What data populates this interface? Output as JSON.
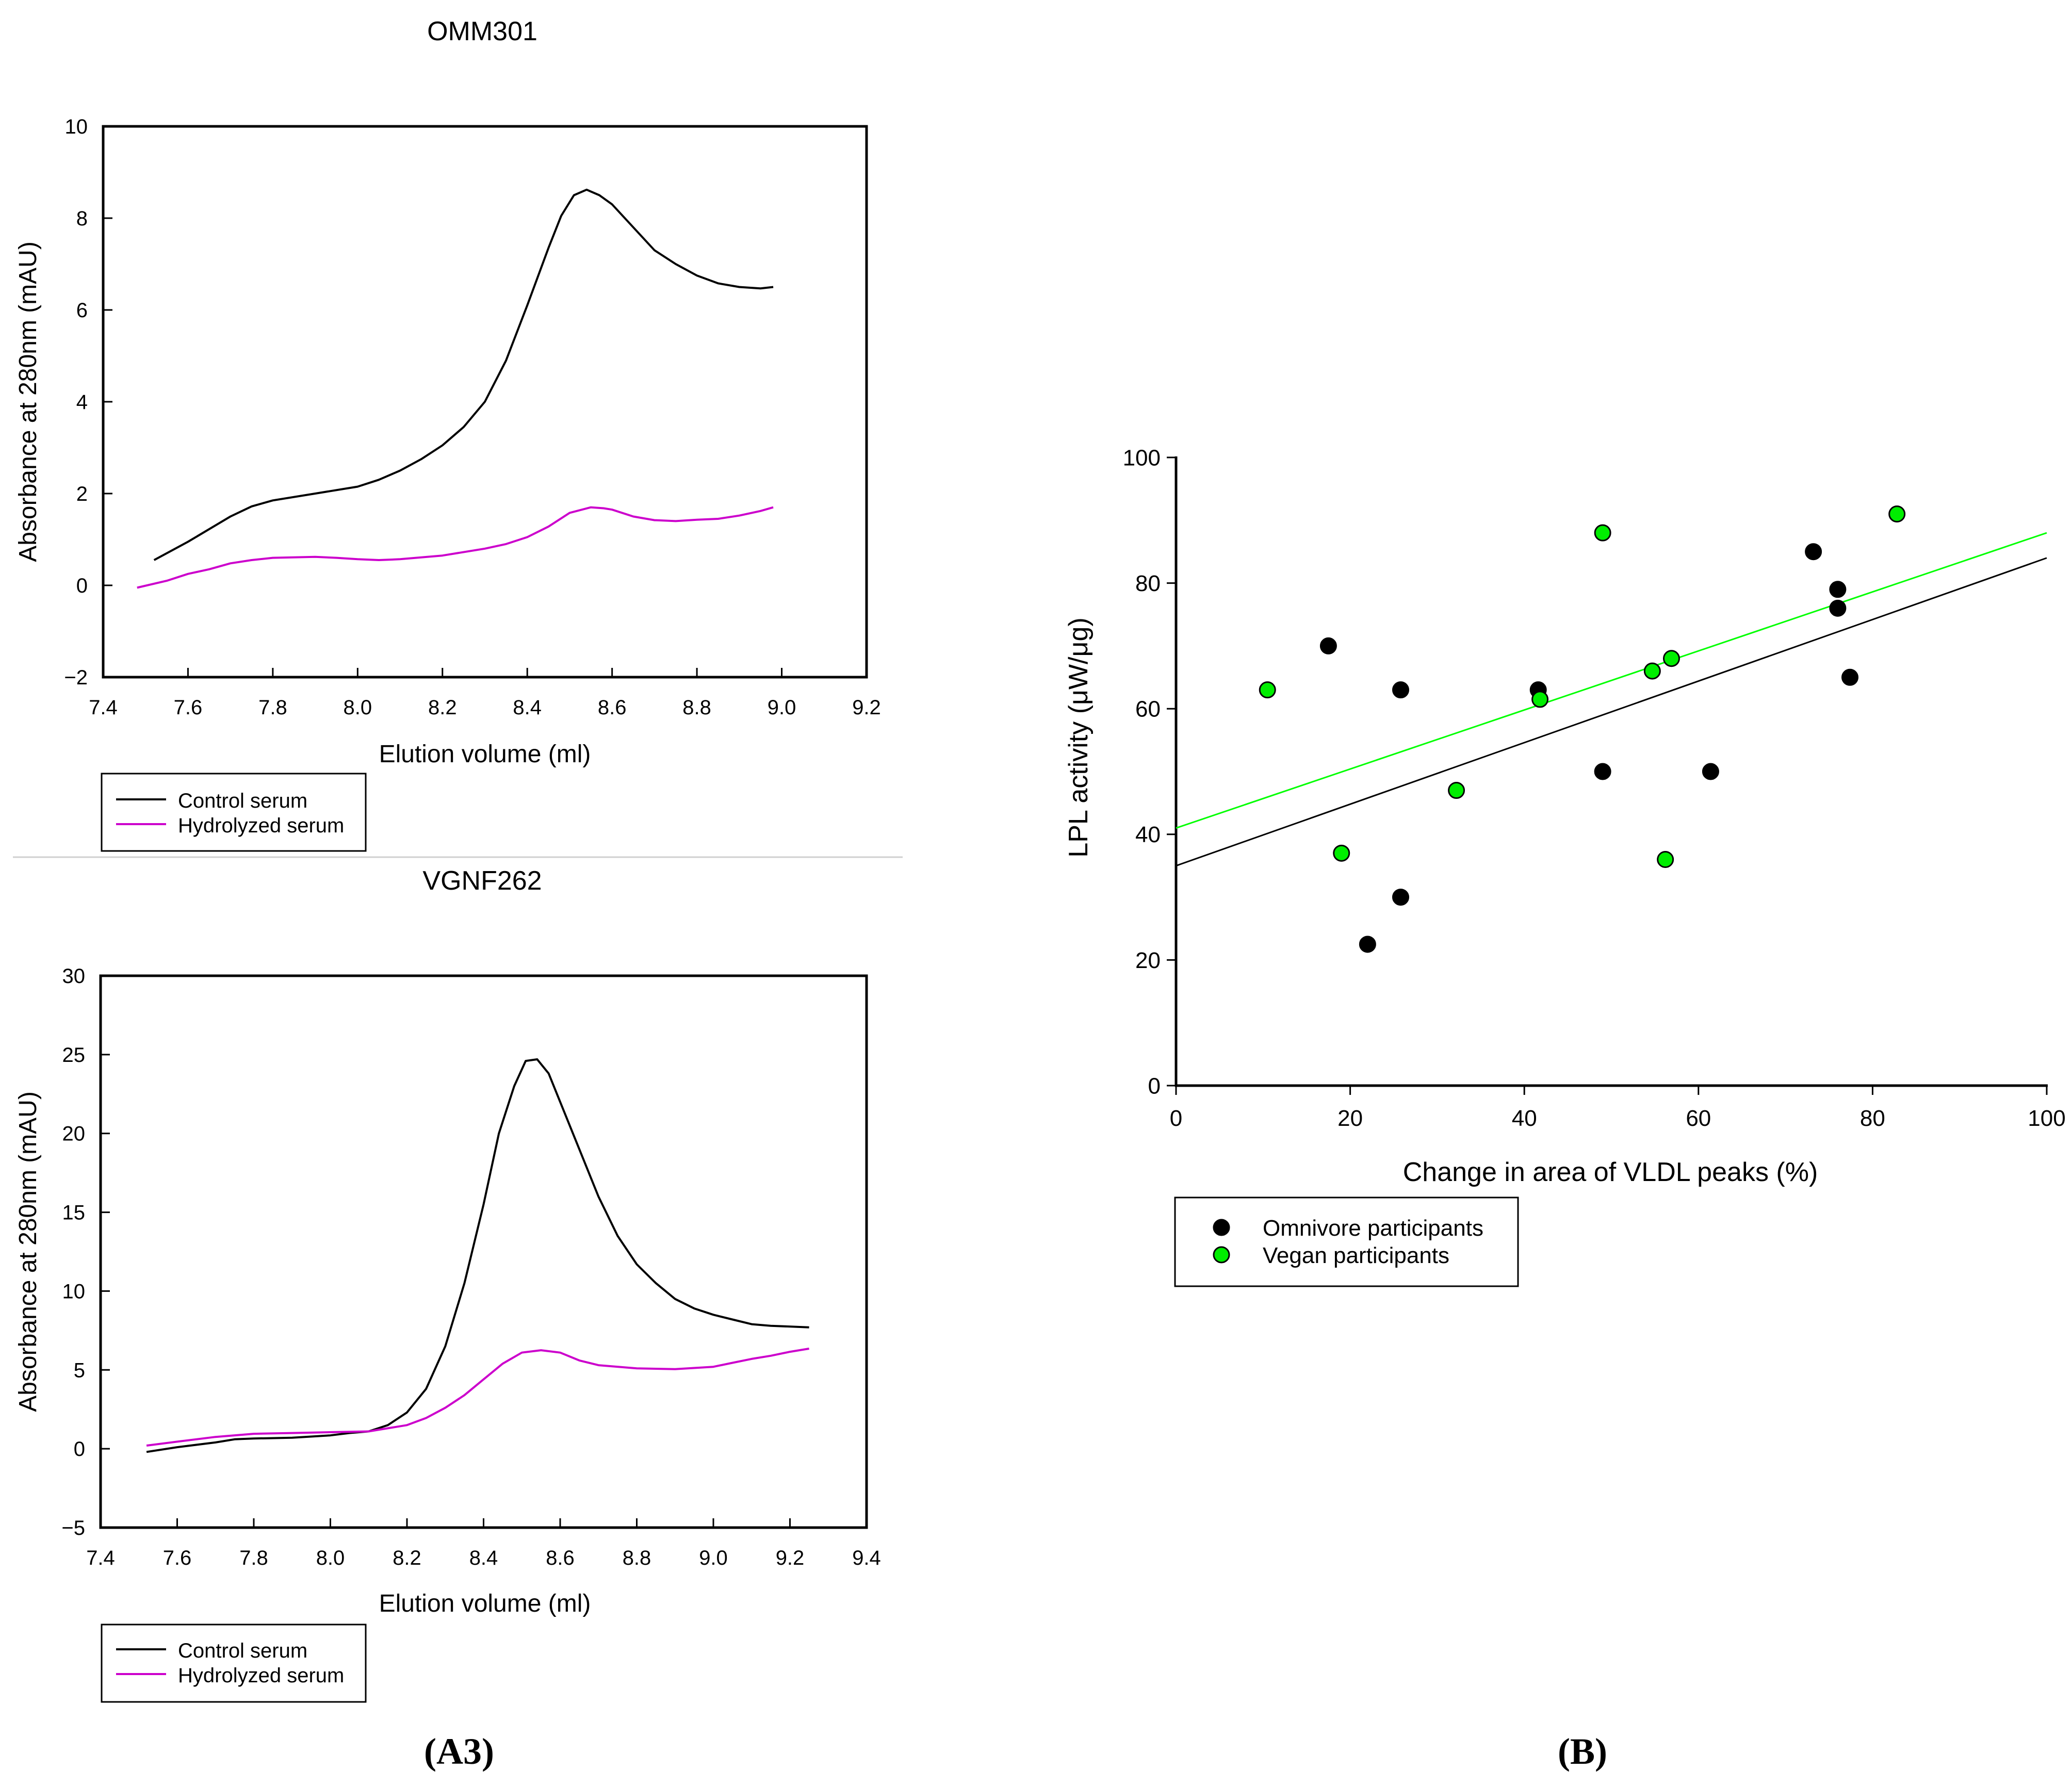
{
  "colors": {
    "control": "#000000",
    "hydrolyzed": "#cc00cc",
    "omnivore": "#000000",
    "vegan": "#00ee00",
    "vegan_line": "#00ff00",
    "axis": "#000000"
  },
  "panel_labels": {
    "a": "(A3)",
    "b": "(B)"
  },
  "chart_data": [
    {
      "type": "line",
      "title": "OMM301",
      "xlabel": "Elution volume (ml)",
      "ylabel": "Absorbance at 280nm (mAU)",
      "xlim": [
        7.4,
        9.2
      ],
      "ylim": [
        -2,
        10
      ],
      "xticks": [
        7.4,
        7.6,
        7.8,
        8.0,
        8.2,
        8.4,
        8.6,
        8.8,
        9.0,
        9.2
      ],
      "xtick_labels": [
        "7.4",
        "7.6",
        "7.8",
        "8.0",
        "8.2",
        "8.4",
        "8.6",
        "8.8",
        "9.0",
        "9.2"
      ],
      "yticks": [
        -2,
        0,
        2,
        4,
        6,
        8,
        10
      ],
      "ytick_labels": [
        "−2",
        "0",
        "2",
        "4",
        "6",
        "8",
        "10"
      ],
      "legend": {
        "position": "below",
        "entries": [
          "Control serum",
          "Hydrolyzed serum"
        ]
      },
      "series": [
        {
          "name": "Control serum",
          "points": [
            [
              7.52,
              0.55
            ],
            [
              7.6,
              0.95
            ],
            [
              7.7,
              1.5
            ],
            [
              7.75,
              1.72
            ],
            [
              7.8,
              1.85
            ],
            [
              7.9,
              2.0
            ],
            [
              8.0,
              2.15
            ],
            [
              8.05,
              2.3
            ],
            [
              8.1,
              2.5
            ],
            [
              8.15,
              2.75
            ],
            [
              8.2,
              3.05
            ],
            [
              8.25,
              3.45
            ],
            [
              8.3,
              4.0
            ],
            [
              8.35,
              4.9
            ],
            [
              8.4,
              6.1
            ],
            [
              8.45,
              7.35
            ],
            [
              8.48,
              8.05
            ],
            [
              8.51,
              8.5
            ],
            [
              8.54,
              8.62
            ],
            [
              8.57,
              8.5
            ],
            [
              8.6,
              8.3
            ],
            [
              8.65,
              7.8
            ],
            [
              8.7,
              7.3
            ],
            [
              8.75,
              7.0
            ],
            [
              8.8,
              6.75
            ],
            [
              8.85,
              6.58
            ],
            [
              8.9,
              6.5
            ],
            [
              8.95,
              6.47
            ],
            [
              8.98,
              6.5
            ]
          ]
        },
        {
          "name": "Hydrolyzed serum",
          "points": [
            [
              7.48,
              -0.05
            ],
            [
              7.55,
              0.1
            ],
            [
              7.6,
              0.25
            ],
            [
              7.65,
              0.35
            ],
            [
              7.7,
              0.48
            ],
            [
              7.75,
              0.55
            ],
            [
              7.8,
              0.6
            ],
            [
              7.9,
              0.62
            ],
            [
              7.95,
              0.6
            ],
            [
              8.0,
              0.57
            ],
            [
              8.05,
              0.55
            ],
            [
              8.1,
              0.57
            ],
            [
              8.2,
              0.65
            ],
            [
              8.3,
              0.8
            ],
            [
              8.35,
              0.9
            ],
            [
              8.4,
              1.05
            ],
            [
              8.45,
              1.28
            ],
            [
              8.5,
              1.58
            ],
            [
              8.55,
              1.7
            ],
            [
              8.58,
              1.68
            ],
            [
              8.6,
              1.65
            ],
            [
              8.65,
              1.5
            ],
            [
              8.7,
              1.42
            ],
            [
              8.75,
              1.4
            ],
            [
              8.8,
              1.43
            ],
            [
              8.85,
              1.45
            ],
            [
              8.9,
              1.52
            ],
            [
              8.95,
              1.62
            ],
            [
              8.98,
              1.7
            ]
          ]
        }
      ]
    },
    {
      "type": "line",
      "title": "VGNF262",
      "xlabel": "Elution volume (ml)",
      "ylabel": "Absorbance at 280nm (mAU)",
      "xlim": [
        7.4,
        9.4
      ],
      "ylim": [
        -5,
        30
      ],
      "xticks": [
        7.4,
        7.6,
        7.8,
        8.0,
        8.2,
        8.4,
        8.6,
        8.8,
        9.0,
        9.2,
        9.4
      ],
      "xtick_labels": [
        "7.4",
        "7.6",
        "7.8",
        "8.0",
        "8.2",
        "8.4",
        "8.6",
        "8.8",
        "9.0",
        "9.2",
        "9.4"
      ],
      "yticks": [
        -5,
        0,
        5,
        10,
        15,
        20,
        25,
        30
      ],
      "ytick_labels": [
        "−5",
        "0",
        "5",
        "10",
        "15",
        "20",
        "25",
        "30"
      ],
      "legend": {
        "position": "below",
        "entries": [
          "Control serum",
          "Hydrolyzed serum"
        ]
      },
      "series": [
        {
          "name": "Control serum",
          "points": [
            [
              7.52,
              -0.2
            ],
            [
              7.6,
              0.1
            ],
            [
              7.7,
              0.4
            ],
            [
              7.75,
              0.6
            ],
            [
              7.8,
              0.65
            ],
            [
              7.9,
              0.7
            ],
            [
              8.0,
              0.85
            ],
            [
              8.05,
              1.0
            ],
            [
              8.1,
              1.1
            ],
            [
              8.15,
              1.5
            ],
            [
              8.2,
              2.3
            ],
            [
              8.25,
              3.8
            ],
            [
              8.3,
              6.5
            ],
            [
              8.35,
              10.5
            ],
            [
              8.4,
              15.5
            ],
            [
              8.44,
              20.0
            ],
            [
              8.48,
              23.0
            ],
            [
              8.51,
              24.6
            ],
            [
              8.54,
              24.7
            ],
            [
              8.57,
              23.8
            ],
            [
              8.6,
              22.0
            ],
            [
              8.65,
              19.0
            ],
            [
              8.7,
              16.0
            ],
            [
              8.75,
              13.5
            ],
            [
              8.8,
              11.7
            ],
            [
              8.85,
              10.5
            ],
            [
              8.9,
              9.5
            ],
            [
              8.95,
              8.9
            ],
            [
              9.0,
              8.5
            ],
            [
              9.05,
              8.2
            ],
            [
              9.1,
              7.9
            ],
            [
              9.15,
              7.8
            ],
            [
              9.25,
              7.7
            ]
          ]
        },
        {
          "name": "Hydrolyzed serum",
          "points": [
            [
              7.52,
              0.2
            ],
            [
              7.6,
              0.45
            ],
            [
              7.7,
              0.75
            ],
            [
              7.8,
              0.95
            ],
            [
              7.9,
              1.0
            ],
            [
              8.0,
              1.05
            ],
            [
              8.1,
              1.1
            ],
            [
              8.15,
              1.3
            ],
            [
              8.2,
              1.5
            ],
            [
              8.25,
              1.95
            ],
            [
              8.3,
              2.6
            ],
            [
              8.35,
              3.4
            ],
            [
              8.4,
              4.4
            ],
            [
              8.45,
              5.4
            ],
            [
              8.5,
              6.1
            ],
            [
              8.55,
              6.25
            ],
            [
              8.6,
              6.1
            ],
            [
              8.65,
              5.6
            ],
            [
              8.7,
              5.3
            ],
            [
              8.8,
              5.1
            ],
            [
              8.9,
              5.05
            ],
            [
              9.0,
              5.2
            ],
            [
              9.05,
              5.45
            ],
            [
              9.1,
              5.7
            ],
            [
              9.15,
              5.9
            ],
            [
              9.2,
              6.15
            ],
            [
              9.25,
              6.35
            ]
          ]
        }
      ]
    },
    {
      "type": "scatter",
      "title": "",
      "xlabel": "Change in area of VLDL peaks (%)",
      "ylabel": "LPL activity (μW/μg)",
      "xlim": [
        0,
        100
      ],
      "ylim": [
        0,
        100
      ],
      "xticks": [
        0,
        20,
        40,
        60,
        80,
        100
      ],
      "xtick_labels": [
        "0",
        "20",
        "40",
        "60",
        "80",
        "100"
      ],
      "yticks": [
        0,
        20,
        40,
        60,
        80,
        100
      ],
      "ytick_labels": [
        "0",
        "20",
        "40",
        "60",
        "80",
        "100"
      ],
      "legend": {
        "position": "below",
        "entries": [
          "Omnivore participants",
          "Vegan participants"
        ]
      },
      "series": [
        {
          "name": "Omnivore participants",
          "points": [
            [
              17.5,
              70
            ],
            [
              25.8,
              63
            ],
            [
              41.6,
              63
            ],
            [
              22,
              22.5
            ],
            [
              25.8,
              30
            ],
            [
              49,
              50
            ],
            [
              61.4,
              50
            ],
            [
              73.2,
              85
            ],
            [
              76,
              79
            ],
            [
              76,
              76
            ],
            [
              77.4,
              65
            ]
          ],
          "fit": {
            "intercept": 35,
            "slope": 0.49
          }
        },
        {
          "name": "Vegan participants",
          "points": [
            [
              10.5,
              63
            ],
            [
              19,
              37
            ],
            [
              32.2,
              47
            ],
            [
              41.8,
              61.5
            ],
            [
              49,
              88
            ],
            [
              54.7,
              66
            ],
            [
              56.9,
              68
            ],
            [
              56.2,
              36
            ],
            [
              82.8,
              91
            ]
          ],
          "fit": {
            "intercept": 41,
            "slope": 0.47
          }
        }
      ]
    }
  ]
}
